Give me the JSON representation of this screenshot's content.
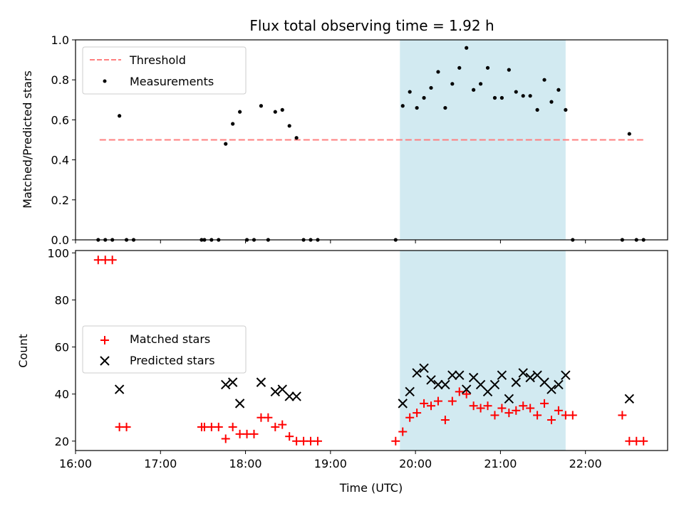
{
  "title": "Flux total observing time = 1.92 h",
  "colors": {
    "threshold": "#ff7f7f",
    "measurement": "#000000",
    "matched": "#ff0000",
    "predicted": "#000000",
    "shade": "#add8e6"
  },
  "chart_data": [
    {
      "type": "scatter",
      "ylabel": "Matched/Predicted stars",
      "ylim": [
        0,
        1
      ],
      "yticks": [
        0.0,
        0.2,
        0.4,
        0.6,
        0.8,
        1.0
      ],
      "ytick_labels": [
        "0.0",
        "0.2",
        "0.4",
        "0.6",
        "0.8",
        "1.0"
      ],
      "xlim": [
        "16:00",
        "22:58"
      ],
      "legend_position": "top-left",
      "shaded_span": [
        "19:49",
        "21:46"
      ],
      "threshold": {
        "name": "Threshold",
        "y": 0.5,
        "x": [
          "16:17",
          "22:42"
        ],
        "style": "dashed"
      },
      "series": [
        {
          "name": "Measurements",
          "marker": "dot",
          "x": [
            "16:16",
            "16:21",
            "16:26",
            "16:31",
            "16:36",
            "16:41",
            "17:29",
            "17:31",
            "17:36",
            "17:41",
            "17:46",
            "17:51",
            "17:56",
            "18:01",
            "18:06",
            "18:11",
            "18:16",
            "18:21",
            "18:26",
            "18:31",
            "18:36",
            "18:41",
            "18:46",
            "18:51",
            "19:46",
            "19:51",
            "19:56",
            "20:01",
            "20:06",
            "20:11",
            "20:16",
            "20:21",
            "20:26",
            "20:31",
            "20:36",
            "20:41",
            "20:46",
            "20:51",
            "20:56",
            "21:01",
            "21:06",
            "21:11",
            "21:16",
            "21:21",
            "21:26",
            "21:31",
            "21:36",
            "21:41",
            "21:46",
            "21:51",
            "22:26",
            "22:31",
            "22:36",
            "22:41"
          ],
          "y": [
            0,
            0,
            0,
            0.62,
            0,
            0,
            0,
            0,
            0,
            0,
            0.48,
            0.58,
            0.64,
            0,
            0,
            0.67,
            0,
            0.64,
            0.65,
            0.57,
            0.51,
            0,
            0,
            0,
            0,
            0.67,
            0.74,
            0.66,
            0.71,
            0.76,
            0.84,
            0.66,
            0.78,
            0.86,
            0.96,
            0.75,
            0.78,
            0.86,
            0.71,
            0.71,
            0.85,
            0.74,
            0.72,
            0.72,
            0.65,
            0.8,
            0.69,
            0.75,
            0.65,
            0,
            0,
            0.53,
            0,
            0
          ]
        }
      ]
    },
    {
      "type": "scatter",
      "xlabel": "Time (UTC)",
      "ylabel": "Count",
      "ylim": [
        16,
        101
      ],
      "yticks": [
        20,
        40,
        60,
        80,
        100
      ],
      "ytick_labels": [
        "20",
        "40",
        "60",
        "80",
        "100"
      ],
      "xlim": [
        "16:00",
        "22:58"
      ],
      "xtick_labels": [
        "16:00",
        "17:00",
        "18:00",
        "19:00",
        "20:00",
        "21:00",
        "22:00"
      ],
      "legend_position": "center-left",
      "shaded_span": [
        "19:49",
        "21:46"
      ],
      "series": [
        {
          "name": "Matched stars",
          "marker": "plus",
          "x": [
            "16:16",
            "16:21",
            "16:26",
            "16:31",
            "16:36",
            "17:29",
            "17:31",
            "17:36",
            "17:41",
            "17:46",
            "17:51",
            "17:56",
            "18:01",
            "18:06",
            "18:11",
            "18:16",
            "18:21",
            "18:26",
            "18:31",
            "18:36",
            "18:41",
            "18:46",
            "18:51",
            "19:46",
            "19:51",
            "19:56",
            "20:01",
            "20:06",
            "20:11",
            "20:16",
            "20:21",
            "20:26",
            "20:31",
            "20:36",
            "20:41",
            "20:46",
            "20:51",
            "20:56",
            "21:01",
            "21:06",
            "21:11",
            "21:16",
            "21:21",
            "21:26",
            "21:31",
            "21:36",
            "21:41",
            "21:46",
            "21:51",
            "22:26",
            "22:31",
            "22:36",
            "22:41"
          ],
          "y": [
            97,
            97,
            97,
            26,
            26,
            26,
            26,
            26,
            26,
            21,
            26,
            23,
            23,
            23,
            30,
            30,
            26,
            27,
            22,
            20,
            20,
            20,
            20,
            20,
            24,
            30,
            32,
            36,
            35,
            37,
            29,
            37,
            41,
            40,
            35,
            34,
            35,
            31,
            34,
            32,
            33,
            35,
            34,
            31,
            36,
            29,
            33,
            31,
            31,
            31,
            20,
            20,
            20
          ]
        },
        {
          "name": "Predicted stars",
          "marker": "x",
          "x": [
            "16:31",
            "17:46",
            "17:51",
            "17:56",
            "18:11",
            "18:21",
            "18:26",
            "18:31",
            "18:36",
            "19:51",
            "19:56",
            "20:01",
            "20:06",
            "20:11",
            "20:16",
            "20:21",
            "20:26",
            "20:31",
            "20:36",
            "20:41",
            "20:46",
            "20:51",
            "20:56",
            "21:01",
            "21:06",
            "21:11",
            "21:16",
            "21:21",
            "21:26",
            "21:31",
            "21:36",
            "21:41",
            "21:46",
            "22:31"
          ],
          "y": [
            42,
            44,
            45,
            36,
            45,
            41,
            42,
            39,
            39,
            36,
            41,
            49,
            51,
            46,
            44,
            44,
            48,
            48,
            42,
            47,
            44,
            41,
            44,
            48,
            38,
            45,
            49,
            47,
            48,
            45,
            42,
            44,
            48,
            38
          ]
        }
      ]
    }
  ]
}
